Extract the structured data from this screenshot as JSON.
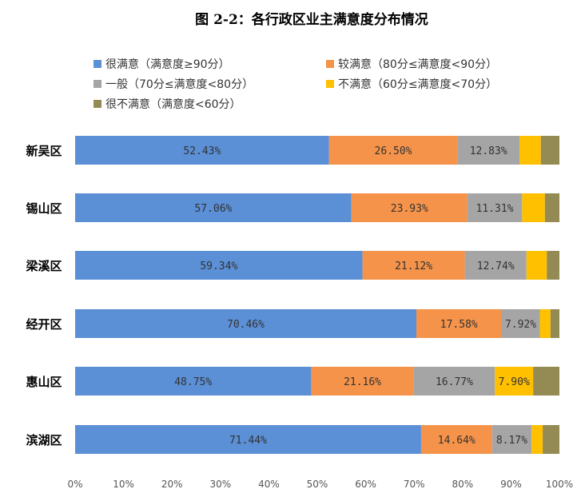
{
  "chart_data": {
    "type": "bar",
    "orientation": "horizontal",
    "stacked": "percent",
    "title": "图 2-2：各行政区业主满意度分布情况",
    "categories": [
      "新吴区",
      "锡山区",
      "梁溪区",
      "经开区",
      "惠山区",
      "滨湖区"
    ],
    "series": [
      {
        "name": "很满意（满意度≥90分）",
        "color": "#5B8FD6",
        "values": [
          52.43,
          57.06,
          59.34,
          70.46,
          48.75,
          71.44
        ],
        "labels": [
          "52.43%",
          "57.06%",
          "59.34%",
          "70.46%",
          "48.75%",
          "71.44%"
        ]
      },
      {
        "name": "较满意（80分≤满意度<90分）",
        "color": "#F5934A",
        "values": [
          26.5,
          23.93,
          21.12,
          17.58,
          21.16,
          14.64
        ],
        "labels": [
          "26.50%",
          "23.93%",
          "21.12%",
          "17.58%",
          "21.16%",
          "14.64%"
        ]
      },
      {
        "name": "一般（70分≤满意度<80分）",
        "color": "#A5A5A5",
        "values": [
          12.83,
          11.31,
          12.74,
          7.92,
          16.77,
          8.17
        ],
        "labels": [
          "12.83%",
          "11.31%",
          "12.74%",
          "7.92%",
          "16.77%",
          "8.17%"
        ]
      },
      {
        "name": "不满意（60分≤满意度<70分）",
        "color": "#FFC000",
        "values": [
          4.4,
          4.7,
          4.2,
          2.2,
          7.9,
          2.3
        ],
        "labels": [
          "",
          "",
          "",
          "",
          "7.90%",
          ""
        ]
      },
      {
        "name": "很不满意（满意度<60分）",
        "color": "#948A54",
        "values": [
          3.84,
          3.0,
          2.6,
          1.84,
          5.42,
          3.45
        ],
        "labels": [
          "",
          "",
          "",
          "",
          "",
          ""
        ]
      }
    ],
    "xlim": [
      0,
      100
    ],
    "xticks": [
      "0%",
      "10%",
      "20%",
      "30%",
      "40%",
      "50%",
      "60%",
      "70%",
      "80%",
      "90%",
      "100%"
    ],
    "legend_position": "top",
    "grid": false
  }
}
